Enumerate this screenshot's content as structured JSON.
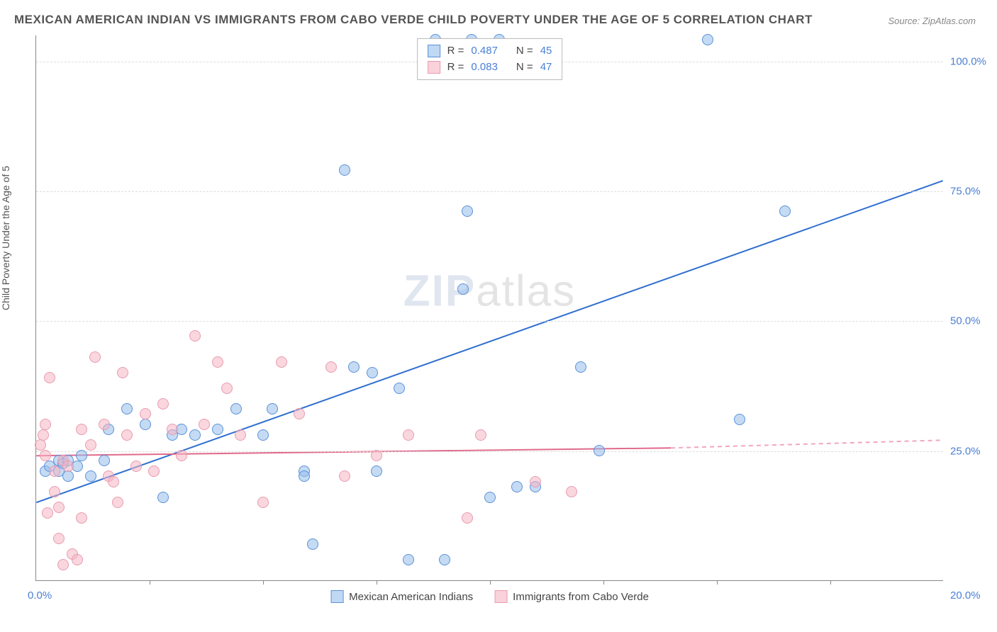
{
  "title": "MEXICAN AMERICAN INDIAN VS IMMIGRANTS FROM CABO VERDE CHILD POVERTY UNDER THE AGE OF 5 CORRELATION CHART",
  "source": "Source: ZipAtlas.com",
  "y_axis_label": "Child Poverty Under the Age of 5",
  "watermark_zip": "ZIP",
  "watermark_atlas": "atlas",
  "chart": {
    "type": "scatter",
    "xlim": [
      0,
      20
    ],
    "ylim": [
      0,
      105
    ],
    "x_ticks_left_label": "0.0%",
    "x_ticks_right_label": "20.0%",
    "y_ticks": [
      {
        "v": 25,
        "label": "25.0%"
      },
      {
        "v": 50,
        "label": "50.0%"
      },
      {
        "v": 75,
        "label": "75.0%"
      },
      {
        "v": 100,
        "label": "100.0%"
      }
    ],
    "x_minor_ticks": [
      2.5,
      5,
      7.5,
      10,
      12.5,
      15,
      17.5
    ],
    "background_color": "#ffffff",
    "grid_color": "#dddddd",
    "axis_color": "#888888",
    "tick_label_color": "#4a7fd6",
    "series": [
      {
        "name": "Mexican American Indians",
        "color_fill": "rgba(150,190,235,0.55)",
        "color_stroke": "#5b91d8",
        "R_label": "R =",
        "R": "0.487",
        "N_label": "N =",
        "N": "45",
        "trend": {
          "x1": 0,
          "y1": 15,
          "x2": 20,
          "y2": 77,
          "color": "#2e6fd0",
          "width": 2,
          "dash": "none"
        },
        "points": [
          [
            0.2,
            21
          ],
          [
            0.3,
            22
          ],
          [
            0.5,
            23
          ],
          [
            0.5,
            21
          ],
          [
            0.6,
            22.5
          ],
          [
            0.7,
            20
          ],
          [
            0.7,
            23
          ],
          [
            0.9,
            22
          ],
          [
            1.0,
            24
          ],
          [
            1.2,
            20
          ],
          [
            1.5,
            23
          ],
          [
            1.6,
            29
          ],
          [
            2.0,
            33
          ],
          [
            2.4,
            30
          ],
          [
            2.8,
            16
          ],
          [
            3.0,
            28
          ],
          [
            3.2,
            29
          ],
          [
            3.5,
            28
          ],
          [
            4.0,
            29
          ],
          [
            4.4,
            33
          ],
          [
            5.0,
            28
          ],
          [
            5.2,
            33
          ],
          [
            5.9,
            21
          ],
          [
            5.9,
            20
          ],
          [
            6.1,
            7
          ],
          [
            6.8,
            79
          ],
          [
            7.0,
            41
          ],
          [
            7.4,
            40
          ],
          [
            7.5,
            21
          ],
          [
            8.0,
            37
          ],
          [
            8.2,
            4
          ],
          [
            8.8,
            104
          ],
          [
            9.0,
            4
          ],
          [
            9.4,
            56
          ],
          [
            9.5,
            71
          ],
          [
            9.6,
            104
          ],
          [
            10.0,
            16
          ],
          [
            10.2,
            104
          ],
          [
            10.6,
            18
          ],
          [
            11.0,
            18
          ],
          [
            12.0,
            41
          ],
          [
            12.4,
            25
          ],
          [
            14.8,
            104
          ],
          [
            15.5,
            31
          ],
          [
            16.5,
            71
          ]
        ]
      },
      {
        "name": "Immigrants from Cabo Verde",
        "color_fill": "rgba(245,180,195,0.55)",
        "color_stroke": "#e89cb0",
        "R_label": "R =",
        "R": "0.083",
        "N_label": "N =",
        "N": "47",
        "trend_solid": {
          "x1": 0,
          "y1": 24,
          "x2": 14,
          "y2": 25.5,
          "color": "#e06a8c",
          "width": 2
        },
        "trend_dash": {
          "x1": 14,
          "y1": 25.5,
          "x2": 20,
          "y2": 27,
          "color": "#f0a8bc",
          "width": 2,
          "dash": "6,5"
        },
        "points": [
          [
            0.1,
            26
          ],
          [
            0.15,
            28
          ],
          [
            0.2,
            24
          ],
          [
            0.2,
            30
          ],
          [
            0.25,
            13
          ],
          [
            0.3,
            39
          ],
          [
            0.4,
            17
          ],
          [
            0.4,
            21
          ],
          [
            0.5,
            14
          ],
          [
            0.5,
            8
          ],
          [
            0.6,
            23
          ],
          [
            0.6,
            3
          ],
          [
            0.7,
            22
          ],
          [
            0.8,
            5
          ],
          [
            0.9,
            4
          ],
          [
            1.0,
            29
          ],
          [
            1.0,
            12
          ],
          [
            1.2,
            26
          ],
          [
            1.3,
            43
          ],
          [
            1.5,
            30
          ],
          [
            1.6,
            20
          ],
          [
            1.7,
            19
          ],
          [
            1.8,
            15
          ],
          [
            1.9,
            40
          ],
          [
            2.0,
            28
          ],
          [
            2.2,
            22
          ],
          [
            2.4,
            32
          ],
          [
            2.6,
            21
          ],
          [
            2.8,
            34
          ],
          [
            3.0,
            29
          ],
          [
            3.2,
            24
          ],
          [
            3.5,
            47
          ],
          [
            3.7,
            30
          ],
          [
            4.0,
            42
          ],
          [
            4.2,
            37
          ],
          [
            4.5,
            28
          ],
          [
            5.0,
            15
          ],
          [
            5.4,
            42
          ],
          [
            5.8,
            32
          ],
          [
            6.5,
            41
          ],
          [
            6.8,
            20
          ],
          [
            7.5,
            24
          ],
          [
            8.2,
            28
          ],
          [
            9.5,
            12
          ],
          [
            9.8,
            28
          ],
          [
            11.0,
            19
          ],
          [
            11.8,
            17
          ]
        ]
      }
    ],
    "legend": {
      "items": [
        {
          "label": "Mexican American Indians",
          "swatch": "blue"
        },
        {
          "label": "Immigrants from Cabo Verde",
          "swatch": "pink"
        }
      ]
    }
  }
}
